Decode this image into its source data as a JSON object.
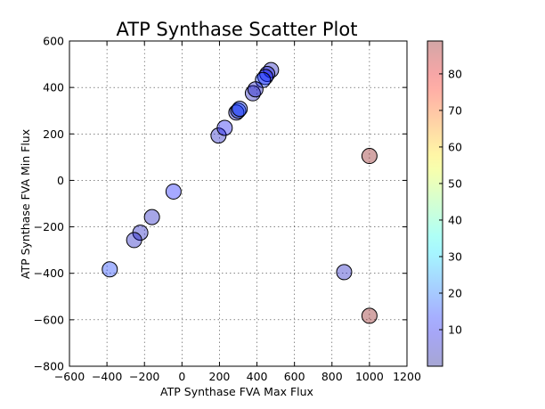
{
  "chart_data": {
    "type": "scatter",
    "title": "ATP Synthase Scatter Plot",
    "xlabel": "ATP Synthase FVA Max Flux",
    "ylabel": "ATP Synthase FVA Min Flux",
    "xlim": [
      -600,
      1200
    ],
    "ylim": [
      -800,
      600
    ],
    "xticks": [
      -600,
      -400,
      -200,
      0,
      200,
      400,
      600,
      800,
      1000,
      1200
    ],
    "yticks": [
      -800,
      -600,
      -400,
      -200,
      0,
      200,
      400,
      600
    ],
    "xtick_labels": [
      "−600",
      "−400",
      "−200",
      "0",
      "200",
      "400",
      "600",
      "800",
      "1000",
      "1200"
    ],
    "ytick_labels": [
      "−800",
      "−600",
      "−400",
      "−200",
      "0",
      "200",
      "400",
      "600"
    ],
    "grid": true,
    "marker_alpha": 0.35,
    "points": [
      {
        "x": 475,
        "y": 475,
        "c": 5
      },
      {
        "x": 455,
        "y": 458,
        "c": 8
      },
      {
        "x": 445,
        "y": 445,
        "c": 12
      },
      {
        "x": 432,
        "y": 432,
        "c": 15
      },
      {
        "x": 378,
        "y": 375,
        "c": 5
      },
      {
        "x": 392,
        "y": 392,
        "c": 5
      },
      {
        "x": 290,
        "y": 292,
        "c": 5
      },
      {
        "x": 300,
        "y": 300,
        "c": 15
      },
      {
        "x": 308,
        "y": 308,
        "c": 15
      },
      {
        "x": 195,
        "y": 193,
        "c": 5
      },
      {
        "x": 228,
        "y": 226,
        "c": 10
      },
      {
        "x": -45,
        "y": -48,
        "c": 12
      },
      {
        "x": -160,
        "y": -158,
        "c": 5
      },
      {
        "x": -222,
        "y": -225,
        "c": 5
      },
      {
        "x": -255,
        "y": -257,
        "c": 5
      },
      {
        "x": -385,
        "y": -383,
        "c": 15
      },
      {
        "x": 865,
        "y": -395,
        "c": 5
      },
      {
        "x": 1000,
        "y": 105,
        "c": 89
      },
      {
        "x": 1000,
        "y": -583,
        "c": 89
      }
    ],
    "colorbar": {
      "colormap": "jet",
      "min": 0,
      "max": 89,
      "ticks": [
        10,
        20,
        30,
        40,
        50,
        60,
        70,
        80
      ],
      "tick_labels": [
        "10",
        "20",
        "30",
        "40",
        "50",
        "60",
        "70",
        "80"
      ]
    }
  }
}
